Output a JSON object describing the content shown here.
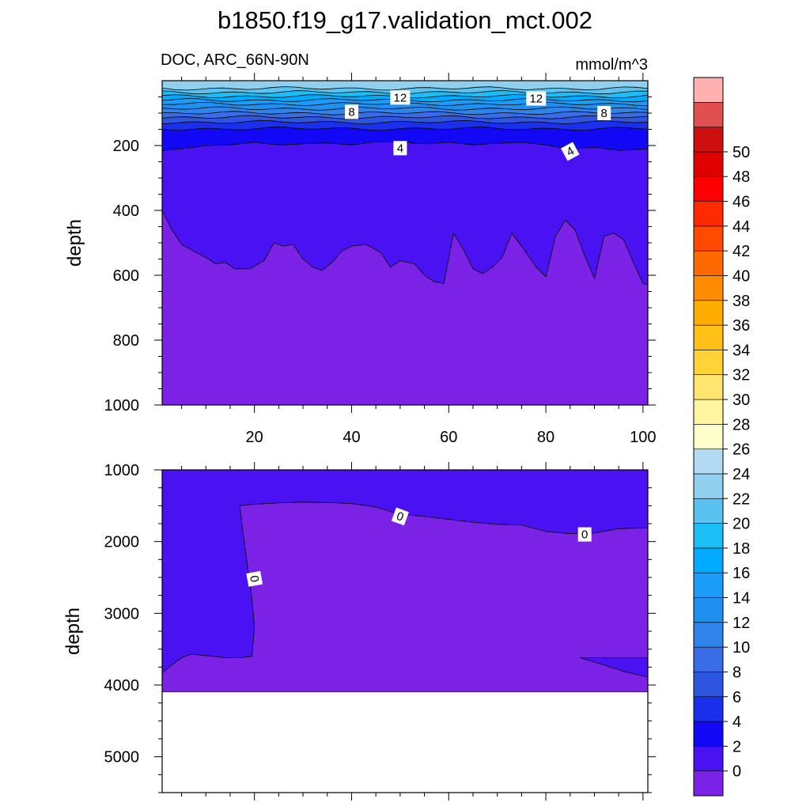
{
  "title": "b1850.f19_g17.validation_mct.002",
  "chart_data": {
    "type": "contour",
    "title": "b1850.f19_g17.validation_mct.002",
    "left_subtitle": "DOC, ARC_66N-90N",
    "right_subtitle": "mmol/m^3",
    "colorbar": {
      "labels": [
        "0",
        "2",
        "4",
        "6",
        "8",
        "10",
        "12",
        "14",
        "16",
        "18",
        "20",
        "22",
        "24",
        "26",
        "28",
        "30",
        "32",
        "34",
        "36",
        "38",
        "40",
        "42",
        "44",
        "46",
        "48",
        "50"
      ],
      "colors": [
        "#7b22e6",
        "#4a12f2",
        "#1208f6",
        "#1a30ec",
        "#2e55e0",
        "#3a6ce6",
        "#2e84ea",
        "#1f8ff0",
        "#1a9cf8",
        "#00aaff",
        "#1cbef6",
        "#5ac2f0",
        "#90cfee",
        "#b2daf2",
        "#ffffcc",
        "#fff5a0",
        "#ffe470",
        "#ffd23a",
        "#fec016",
        "#ffac00",
        "#ff8c00",
        "#ff6a00",
        "#ff4a00",
        "#ff2a00",
        "#ff0000",
        "#e00000",
        "#cc0e0e",
        "#e05050",
        "#ffb0b0"
      ]
    },
    "panels": [
      {
        "name": "upper",
        "xlim": [
          1,
          101
        ],
        "ylim": [
          0,
          1000
        ],
        "y_reversed": true,
        "ylabel": "depth",
        "xticks": [
          20,
          40,
          60,
          80,
          100
        ],
        "yticks": [
          200,
          400,
          600,
          800,
          1000
        ],
        "contour_labels": [
          {
            "text": "12",
            "x": 50,
            "y": 52
          },
          {
            "text": "12",
            "x": 78,
            "y": 55
          },
          {
            "text": "8",
            "x": 40,
            "y": 96
          },
          {
            "text": "8",
            "x": 92,
            "y": 100
          },
          {
            "text": "4",
            "x": 50,
            "y": 208
          },
          {
            "text": "4",
            "x": 85,
            "y": 218
          }
        ],
        "boundary_2_to_0_depth": [
          [
            1,
            400
          ],
          [
            3,
            460
          ],
          [
            5,
            505
          ],
          [
            8,
            530
          ],
          [
            10,
            545
          ],
          [
            12,
            565
          ],
          [
            14,
            560
          ],
          [
            16,
            580
          ],
          [
            19,
            580
          ],
          [
            22,
            555
          ],
          [
            24,
            500
          ],
          [
            26,
            510
          ],
          [
            28,
            505
          ],
          [
            30,
            550
          ],
          [
            32,
            575
          ],
          [
            34,
            585
          ],
          [
            36,
            560
          ],
          [
            38,
            525
          ],
          [
            40,
            510
          ],
          [
            43,
            505
          ],
          [
            46,
            530
          ],
          [
            48,
            575
          ],
          [
            50,
            555
          ],
          [
            53,
            565
          ],
          [
            55,
            600
          ],
          [
            57,
            620
          ],
          [
            59,
            625
          ],
          [
            61,
            470
          ],
          [
            63,
            520
          ],
          [
            65,
            580
          ],
          [
            67,
            595
          ],
          [
            69,
            575
          ],
          [
            71,
            545
          ],
          [
            73,
            470
          ],
          [
            75,
            510
          ],
          [
            78,
            575
          ],
          [
            80,
            605
          ],
          [
            82,
            480
          ],
          [
            84,
            430
          ],
          [
            86,
            460
          ],
          [
            88,
            540
          ],
          [
            90,
            610
          ],
          [
            92,
            480
          ],
          [
            94,
            470
          ],
          [
            96,
            490
          ],
          [
            98,
            560
          ],
          [
            100,
            625
          ],
          [
            101,
            630
          ]
        ],
        "boundary_4_depth": [
          [
            1,
            215
          ],
          [
            5,
            210
          ],
          [
            10,
            200
          ],
          [
            15,
            198
          ],
          [
            20,
            190
          ],
          [
            25,
            198
          ],
          [
            30,
            195
          ],
          [
            35,
            192
          ],
          [
            40,
            198
          ],
          [
            45,
            188
          ],
          [
            50,
            190
          ],
          [
            55,
            195
          ],
          [
            60,
            190
          ],
          [
            65,
            198
          ],
          [
            70,
            193
          ],
          [
            75,
            190
          ],
          [
            80,
            198
          ],
          [
            85,
            212
          ],
          [
            90,
            205
          ],
          [
            95,
            215
          ],
          [
            101,
            210
          ]
        ]
      },
      {
        "name": "lower",
        "xlim": [
          1,
          101
        ],
        "ylim": [
          1000,
          5500
        ],
        "y_reversed": true,
        "ylabel": "depth",
        "yticks": [
          1000,
          2000,
          3000,
          4000,
          5000
        ],
        "seafloor_depth": 4100,
        "contour_labels": [
          {
            "text": "0",
            "x": 20,
            "y": 2520
          },
          {
            "text": "0",
            "x": 50,
            "y": 1650
          },
          {
            "text": "0",
            "x": 88,
            "y": 1900
          }
        ],
        "zero_contour": [
          [
            17,
            1500
          ],
          [
            20,
            1480
          ],
          [
            25,
            1460
          ],
          [
            30,
            1450
          ],
          [
            35,
            1455
          ],
          [
            40,
            1470
          ],
          [
            45,
            1520
          ],
          [
            50,
            1620
          ],
          [
            55,
            1650
          ],
          [
            60,
            1690
          ],
          [
            65,
            1730
          ],
          [
            70,
            1760
          ],
          [
            75,
            1770
          ],
          [
            80,
            1860
          ],
          [
            85,
            1890
          ],
          [
            90,
            1880
          ],
          [
            95,
            1820
          ],
          [
            101,
            1810
          ]
        ],
        "west_zero_contour": [
          [
            17,
            1500
          ],
          [
            17.5,
            1800
          ],
          [
            18.5,
            2300
          ],
          [
            19.5,
            2800
          ],
          [
            20,
            3200
          ],
          [
            19.5,
            3600
          ],
          [
            17,
            3620
          ],
          [
            14,
            3620
          ],
          [
            10,
            3590
          ],
          [
            7,
            3570
          ],
          [
            5,
            3620
          ],
          [
            3,
            3720
          ],
          [
            1,
            3830
          ]
        ],
        "east_patch": [
          [
            87,
            3620
          ],
          [
            101,
            3620
          ],
          [
            101,
            3890
          ],
          [
            96,
            3810
          ],
          [
            91,
            3700
          ],
          [
            87,
            3620
          ]
        ]
      }
    ]
  }
}
